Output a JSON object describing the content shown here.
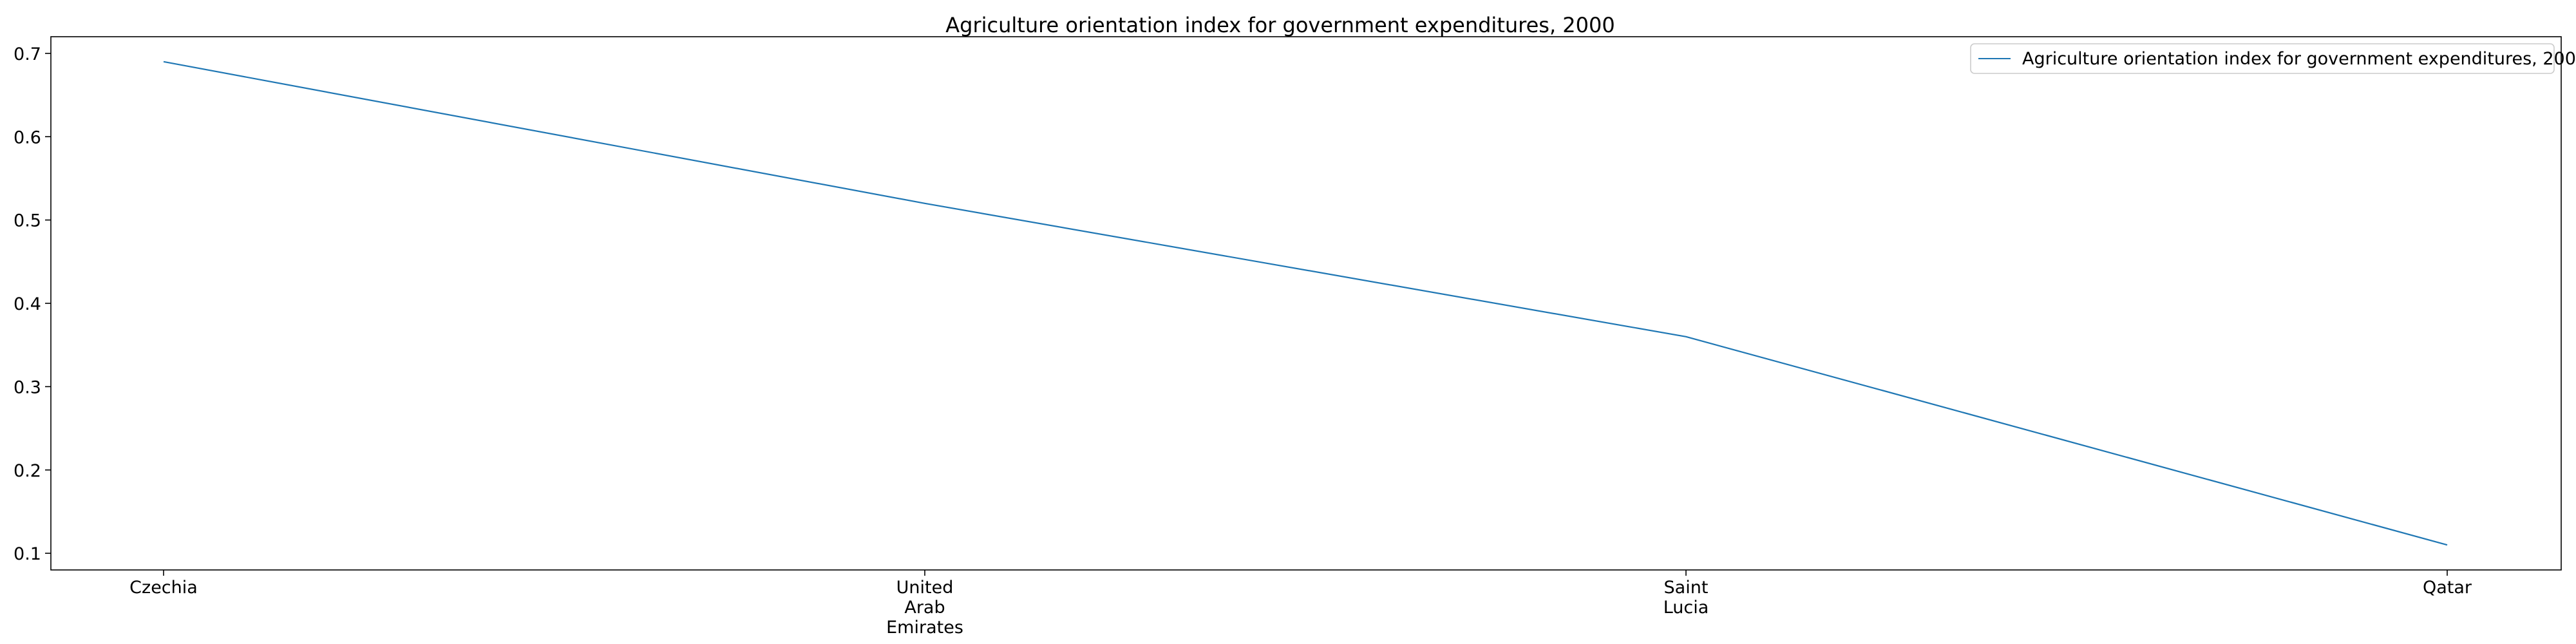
{
  "chart_data": {
    "type": "line",
    "title": "Agriculture orientation index for government expenditures, 2000",
    "categories": [
      "Czechia",
      "United Arab Emirates",
      "Saint Lucia",
      "Qatar"
    ],
    "category_tick_lines": [
      [
        "Czechia"
      ],
      [
        "United",
        "Arab",
        "Emirates"
      ],
      [
        "Saint",
        "Lucia"
      ],
      [
        "Qatar"
      ]
    ],
    "series": [
      {
        "name": "Agriculture orientation index for government expenditures, 2000",
        "values": [
          0.69,
          0.52,
          0.36,
          0.11
        ],
        "color": "#1f77b4"
      }
    ],
    "xlabel": "",
    "ylabel": "",
    "ylim": [
      0.08,
      0.72
    ],
    "yticks": [
      0.1,
      0.2,
      0.3,
      0.4,
      0.5,
      0.6,
      0.7
    ],
    "ytick_labels": [
      "0.1",
      "0.2",
      "0.3",
      "0.4",
      "0.5",
      "0.6",
      "0.7"
    ],
    "grid": false,
    "legend_position": "top-right"
  }
}
